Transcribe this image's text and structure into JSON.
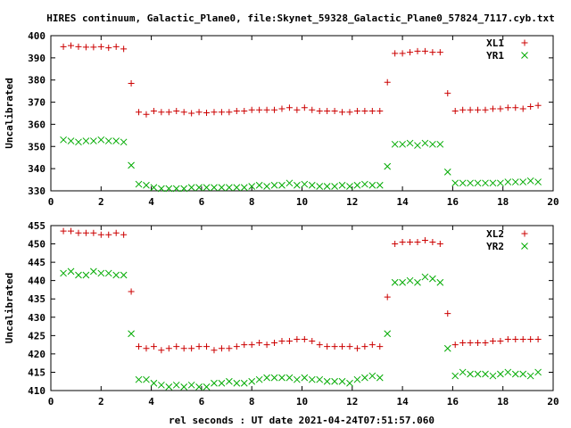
{
  "title": "HIRES continuum, Galactic_Plane0, file:Skynet_59328_Galactic_Plane0_57824_7117.cyb.txt",
  "xlabel": "rel seconds : UT date 2021-04-24T07:51:57.060",
  "chart_data": [
    {
      "type": "scatter",
      "ylabel": "Uncalibrated",
      "xlim": [
        0,
        20
      ],
      "ylim": [
        330,
        400
      ],
      "xticks": [
        0,
        2,
        4,
        6,
        8,
        10,
        12,
        14,
        16,
        18,
        20
      ],
      "yticks": [
        330,
        340,
        350,
        360,
        370,
        380,
        390,
        400
      ],
      "grid": false,
      "legend_position": "top-right",
      "series": [
        {
          "name": "XL1",
          "color": "#cc0000",
          "marker": "plus",
          "x": [
            0.5,
            0.8,
            1.1,
            1.4,
            1.7,
            2.0,
            2.3,
            2.6,
            2.9,
            3.2,
            3.5,
            3.8,
            4.1,
            4.4,
            4.7,
            5.0,
            5.3,
            5.6,
            5.9,
            6.2,
            6.5,
            6.8,
            7.1,
            7.4,
            7.7,
            8.0,
            8.3,
            8.6,
            8.9,
            9.2,
            9.5,
            9.8,
            10.1,
            10.4,
            10.7,
            11.0,
            11.3,
            11.6,
            11.9,
            12.2,
            12.5,
            12.8,
            13.1,
            13.4,
            13.7,
            14.0,
            14.3,
            14.6,
            14.9,
            15.2,
            15.5,
            15.8,
            16.1,
            16.4,
            16.7,
            17.0,
            17.3,
            17.6,
            17.9,
            18.2,
            18.5,
            18.8,
            19.1,
            19.4
          ],
          "y": [
            395,
            395.5,
            395,
            394.8,
            394.8,
            395,
            394.5,
            395,
            394,
            378.5,
            365.5,
            364.5,
            366,
            365.5,
            365.5,
            366,
            365.5,
            365,
            365.5,
            365.2,
            365.5,
            365.5,
            365.5,
            366,
            366,
            366.5,
            366.5,
            366.5,
            366.5,
            367,
            367.5,
            366.5,
            367.5,
            366.5,
            366,
            366,
            366,
            365.5,
            365.5,
            366,
            366,
            366,
            366,
            379,
            392,
            392,
            392.5,
            393,
            393,
            392.5,
            392.5,
            374,
            366,
            366.5,
            366.5,
            366.5,
            366.5,
            367,
            367,
            367.5,
            367.5,
            367,
            368,
            368.5
          ]
        },
        {
          "name": "YR1",
          "color": "#00aa00",
          "marker": "x",
          "x": [
            0.5,
            0.8,
            1.1,
            1.4,
            1.7,
            2.0,
            2.3,
            2.6,
            2.9,
            3.2,
            3.5,
            3.8,
            4.1,
            4.4,
            4.7,
            5.0,
            5.3,
            5.6,
            5.9,
            6.2,
            6.5,
            6.8,
            7.1,
            7.4,
            7.7,
            8.0,
            8.3,
            8.6,
            8.9,
            9.2,
            9.5,
            9.8,
            10.1,
            10.4,
            10.7,
            11.0,
            11.3,
            11.6,
            11.9,
            12.2,
            12.5,
            12.8,
            13.1,
            13.4,
            13.7,
            14.0,
            14.3,
            14.6,
            14.9,
            15.2,
            15.5,
            15.8,
            16.1,
            16.4,
            16.7,
            17.0,
            17.3,
            17.6,
            17.9,
            18.2,
            18.5,
            18.8,
            19.1,
            19.4
          ],
          "y": [
            353,
            352.5,
            352,
            352.5,
            352.5,
            353,
            352.5,
            352.5,
            352,
            341.5,
            333,
            332.5,
            331.5,
            331,
            331,
            331,
            331,
            331.5,
            331.5,
            331.5,
            331.5,
            331.5,
            331.5,
            331.5,
            331.5,
            332,
            332.5,
            332,
            332.5,
            332.5,
            333.5,
            332.5,
            333,
            332.5,
            332,
            332,
            332,
            332.5,
            332,
            332.5,
            333,
            332.5,
            332.5,
            341,
            351,
            351,
            351.5,
            350.5,
            351.5,
            351,
            351,
            338.5,
            333.5,
            333.5,
            333.5,
            333.5,
            333.5,
            333.5,
            333.5,
            334,
            334,
            334,
            334.5,
            334
          ]
        }
      ]
    },
    {
      "type": "scatter",
      "ylabel": "Uncalibrated",
      "xlim": [
        0,
        20
      ],
      "ylim": [
        410,
        455
      ],
      "xticks": [
        0,
        2,
        4,
        6,
        8,
        10,
        12,
        14,
        16,
        18,
        20
      ],
      "yticks": [
        410,
        415,
        420,
        425,
        430,
        435,
        440,
        445,
        450,
        455
      ],
      "grid": false,
      "legend_position": "top-right",
      "series": [
        {
          "name": "XL2",
          "color": "#cc0000",
          "marker": "plus",
          "x": [
            0.5,
            0.8,
            1.1,
            1.4,
            1.7,
            2.0,
            2.3,
            2.6,
            2.9,
            3.2,
            3.5,
            3.8,
            4.1,
            4.4,
            4.7,
            5.0,
            5.3,
            5.6,
            5.9,
            6.2,
            6.5,
            6.8,
            7.1,
            7.4,
            7.7,
            8.0,
            8.3,
            8.6,
            8.9,
            9.2,
            9.5,
            9.8,
            10.1,
            10.4,
            10.7,
            11.0,
            11.3,
            11.6,
            11.9,
            12.2,
            12.5,
            12.8,
            13.1,
            13.4,
            13.7,
            14.0,
            14.3,
            14.6,
            14.9,
            15.2,
            15.5,
            15.8,
            16.1,
            16.4,
            16.7,
            17.0,
            17.3,
            17.6,
            17.9,
            18.2,
            18.5,
            18.8,
            19.1,
            19.4
          ],
          "y": [
            453.5,
            453.5,
            453,
            453,
            453,
            452.5,
            452.5,
            453,
            452.5,
            437,
            422,
            421.5,
            422,
            421,
            421.5,
            422,
            421.5,
            421.5,
            422,
            422,
            421,
            421.5,
            421.5,
            422,
            422.5,
            422.5,
            423,
            422.5,
            423,
            423.5,
            423.5,
            424,
            424,
            423.5,
            422.5,
            422,
            422,
            422,
            422,
            421.5,
            422,
            422.5,
            422,
            435.5,
            450,
            450.5,
            450.5,
            450.5,
            451,
            450.5,
            450,
            431,
            422.5,
            423,
            423,
            423,
            423,
            423.5,
            423.5,
            424,
            424,
            424,
            424,
            424
          ]
        },
        {
          "name": "YR2",
          "color": "#00aa00",
          "marker": "x",
          "x": [
            0.5,
            0.8,
            1.1,
            1.4,
            1.7,
            2.0,
            2.3,
            2.6,
            2.9,
            3.2,
            3.5,
            3.8,
            4.1,
            4.4,
            4.7,
            5.0,
            5.3,
            5.6,
            5.9,
            6.2,
            6.5,
            6.8,
            7.1,
            7.4,
            7.7,
            8.0,
            8.3,
            8.6,
            8.9,
            9.2,
            9.5,
            9.8,
            10.1,
            10.4,
            10.7,
            11.0,
            11.3,
            11.6,
            11.9,
            12.2,
            12.5,
            12.8,
            13.1,
            13.4,
            13.7,
            14.0,
            14.3,
            14.6,
            14.9,
            15.2,
            15.5,
            15.8,
            16.1,
            16.4,
            16.7,
            17.0,
            17.3,
            17.6,
            17.9,
            18.2,
            18.5,
            18.8,
            19.1,
            19.4
          ],
          "y": [
            442,
            442.5,
            441.5,
            441.5,
            442.5,
            442,
            442,
            441.5,
            441.5,
            425.5,
            413,
            413,
            412,
            411.5,
            411,
            411.5,
            411,
            411.5,
            411,
            411,
            412,
            412,
            412.5,
            412,
            412,
            412.5,
            413,
            413.5,
            413.5,
            413.5,
            413.5,
            413,
            413.5,
            413,
            413,
            412.5,
            412.5,
            412.5,
            412,
            413,
            413.5,
            414,
            413.5,
            425.5,
            439.5,
            439.5,
            440,
            439.5,
            441,
            440.5,
            439.5,
            421.5,
            414,
            415,
            414.5,
            414.5,
            414.5,
            414,
            414.5,
            415,
            414.5,
            414.5,
            414,
            415
          ]
        }
      ]
    }
  ]
}
